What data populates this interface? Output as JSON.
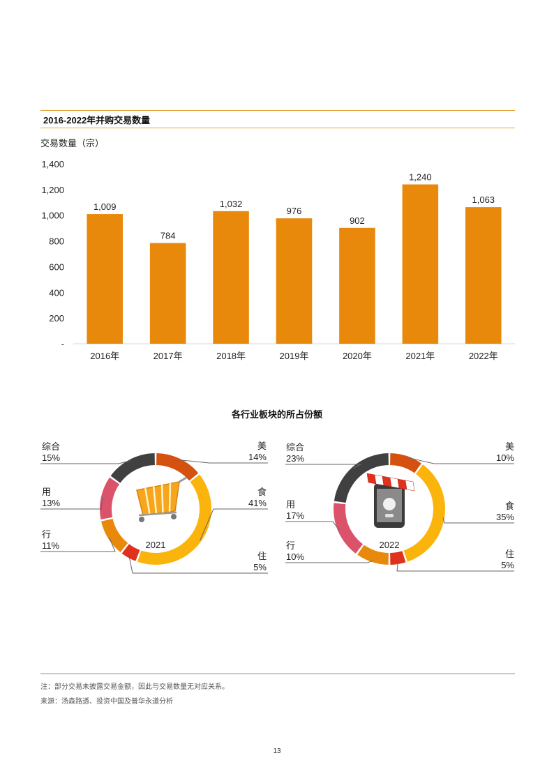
{
  "bar_section": {
    "title": "2016-2022年并购交易数量",
    "ylabel": "交易数量（宗）"
  },
  "donut_section": {
    "title": "各行业板块的所占份额"
  },
  "chart_data": [
    {
      "type": "bar",
      "title": "2016-2022年并购交易数量",
      "ylabel": "交易数量（宗）",
      "xlabel": "",
      "categories": [
        "2016年",
        "2017年",
        "2018年",
        "2019年",
        "2020年",
        "2021年",
        "2022年"
      ],
      "values": [
        1009,
        784,
        1032,
        976,
        902,
        1240,
        1063
      ],
      "value_labels": [
        "1,009",
        "784",
        "1,032",
        "976",
        "902",
        "1,240",
        "1,063"
      ],
      "ylim": [
        0,
        1400
      ],
      "yticks": [
        0,
        200,
        400,
        600,
        800,
        1000,
        1200,
        1400
      ],
      "ytick_labels": [
        "-",
        "200",
        "400",
        "600",
        "800",
        "1,000",
        "1,200",
        "1,400"
      ],
      "color": "#e8890c",
      "grid": false
    },
    {
      "type": "pie",
      "center_label": "2021",
      "slices": [
        {
          "label": "美",
          "value": 14,
          "value_label": "14%",
          "color": "#d4510f"
        },
        {
          "label": "食",
          "value": 41,
          "value_label": "41%",
          "color": "#fbb40b"
        },
        {
          "label": "住",
          "value": 5,
          "value_label": "5%",
          "color": "#e0301e"
        },
        {
          "label": "行",
          "value": 11,
          "value_label": "11%",
          "color": "#e8890c"
        },
        {
          "label": "用",
          "value": 13,
          "value_label": "13%",
          "color": "#db536a"
        },
        {
          "label": "综合",
          "value": 15,
          "value_label": "15%",
          "color": "#404040"
        }
      ]
    },
    {
      "type": "pie",
      "center_label": "2022",
      "slices": [
        {
          "label": "美",
          "value": 10,
          "value_label": "10%",
          "color": "#d4510f"
        },
        {
          "label": "食",
          "value": 35,
          "value_label": "35%",
          "color": "#fbb40b"
        },
        {
          "label": "住",
          "value": 5,
          "value_label": "5%",
          "color": "#e0301e"
        },
        {
          "label": "行",
          "value": 10,
          "value_label": "10%",
          "color": "#e8890c"
        },
        {
          "label": "用",
          "value": 17,
          "value_label": "17%",
          "color": "#db536a"
        },
        {
          "label": "综合",
          "value": 23,
          "value_label": "23%",
          "color": "#404040"
        }
      ]
    }
  ],
  "footer": {
    "note": "注：部分交易未披露交易金额，因此与交易数量无对应关系。",
    "source": "来源：汤森路透、投资中国及普华永道分析",
    "page_number": "13"
  }
}
